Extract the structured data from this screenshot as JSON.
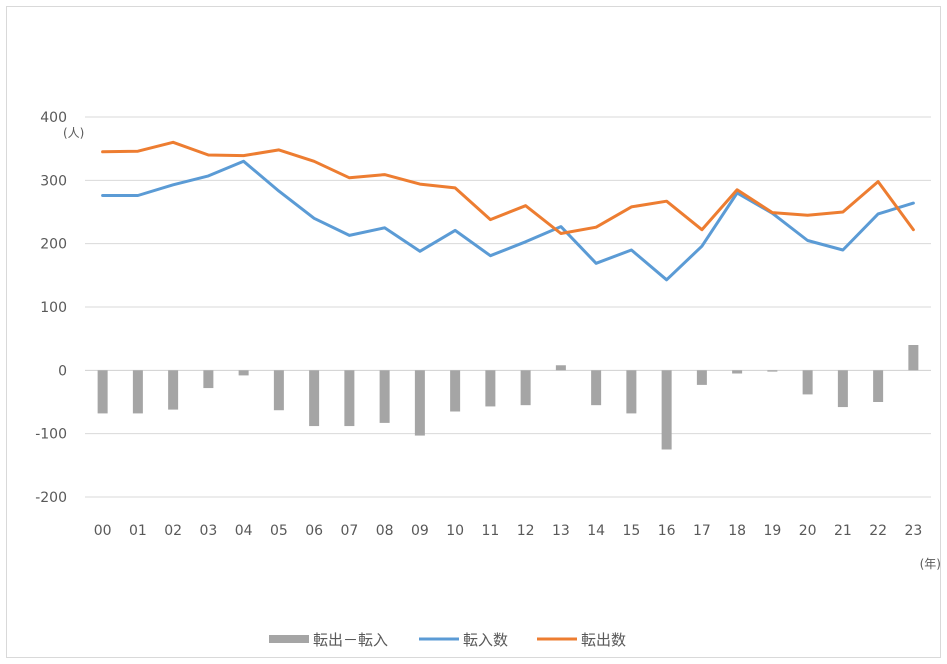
{
  "chart_data": {
    "type": "bar",
    "title": "",
    "xlabel": "",
    "ylabel": "",
    "y_unit": "(人)",
    "x_unit": "(年)",
    "categories": [
      "00",
      "01",
      "02",
      "03",
      "04",
      "05",
      "06",
      "07",
      "08",
      "09",
      "10",
      "11",
      "12",
      "13",
      "14",
      "15",
      "16",
      "17",
      "18",
      "19",
      "20",
      "21",
      "22",
      "23"
    ],
    "ylim": [
      -200,
      400
    ],
    "yticks": [
      400,
      300,
      200,
      100,
      0,
      -100,
      -200
    ],
    "grid": true,
    "legend_position": "bottom",
    "series": [
      {
        "name": "転出－転入",
        "type": "bar",
        "color": "#a5a5a5",
        "values": [
          -68,
          -68,
          -62,
          -28,
          -8,
          -63,
          -88,
          -88,
          -83,
          -103,
          -65,
          -57,
          -55,
          8,
          -55,
          -68,
          -125,
          -23,
          -5,
          -2,
          -38,
          -58,
          -50,
          40
        ]
      },
      {
        "name": "転入数",
        "type": "line",
        "color": "#5b9bd5",
        "values": [
          276,
          276,
          293,
          307,
          330,
          283,
          240,
          213,
          225,
          188,
          221,
          181,
          203,
          227,
          169,
          190,
          143,
          196,
          280,
          248,
          205,
          190,
          247,
          264
        ]
      },
      {
        "name": "転出数",
        "type": "line",
        "color": "#ed7d31",
        "values": [
          345,
          346,
          360,
          340,
          339,
          348,
          330,
          304,
          309,
          294,
          288,
          238,
          260,
          216,
          226,
          258,
          267,
          222,
          285,
          249,
          245,
          250,
          298,
          222
        ]
      }
    ]
  }
}
